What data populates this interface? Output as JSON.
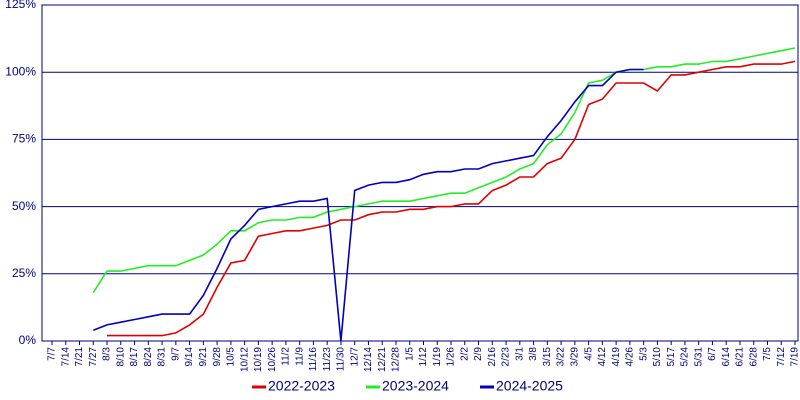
{
  "chart_data": {
    "type": "line",
    "categories": [
      "7/7",
      "7/14",
      "7/21",
      "7/27",
      "8/3",
      "8/10",
      "8/17",
      "8/24",
      "8/31",
      "9/7",
      "9/14",
      "9/21",
      "9/28",
      "10/5",
      "10/12",
      "10/19",
      "10/26",
      "11/2",
      "11/9",
      "11/16",
      "11/23",
      "11/30",
      "12/7",
      "12/14",
      "12/21",
      "12/28",
      "1/5",
      "1/12",
      "1/19",
      "1/26",
      "2/2",
      "2/9",
      "2/16",
      "2/23",
      "3/1",
      "3/8",
      "3/15",
      "3/22",
      "3/29",
      "4/5",
      "4/12",
      "4/19",
      "4/26",
      "5/3",
      "5/10",
      "5/17",
      "5/24",
      "5/31",
      "6/7",
      "6/14",
      "6/21",
      "6/28",
      "7/5",
      "7/12",
      "7/19"
    ],
    "series": [
      {
        "name": "2022-2023",
        "color": "#e00000",
        "values": [
          null,
          null,
          null,
          null,
          2,
          2,
          2,
          2,
          2,
          3,
          6,
          10,
          20,
          29,
          30,
          39,
          40,
          41,
          41,
          42,
          43,
          45,
          45,
          47,
          48,
          48,
          49,
          49,
          50,
          50,
          51,
          51,
          56,
          58,
          61,
          61,
          66,
          68,
          75,
          88,
          90,
          96,
          96,
          96,
          93,
          99,
          99,
          100,
          101,
          102,
          102,
          103,
          103,
          103,
          104
        ]
      },
      {
        "name": "2023-2024",
        "color": "#22ee22",
        "values": [
          null,
          null,
          null,
          18,
          26,
          26,
          27,
          28,
          28,
          28,
          30,
          32,
          36,
          41,
          41,
          44,
          45,
          45,
          46,
          46,
          48,
          49,
          50,
          51,
          52,
          52,
          52,
          53,
          54,
          55,
          55,
          57,
          59,
          61,
          64,
          66,
          73,
          77,
          85,
          96,
          97,
          100,
          101,
          101,
          102,
          102,
          103,
          103,
          104,
          104,
          105,
          106,
          107,
          108,
          109
        ]
      },
      {
        "name": "2024-2025",
        "color": "#0000c0",
        "values": [
          null,
          null,
          null,
          4,
          6,
          7,
          8,
          9,
          10,
          10,
          10,
          17,
          27,
          38,
          43,
          49,
          50,
          51,
          52,
          52,
          53,
          0,
          56,
          58,
          59,
          59,
          60,
          62,
          63,
          63,
          64,
          64,
          66,
          67,
          68,
          69,
          76,
          82,
          89,
          95,
          95,
          100,
          101,
          101,
          null,
          null,
          null,
          null,
          null,
          null,
          null,
          null,
          null,
          null,
          null
        ]
      }
    ],
    "ylim": [
      0,
      125
    ],
    "yticks": [
      {
        "value": 0,
        "label": "0%"
      },
      {
        "value": 25,
        "label": "25%"
      },
      {
        "value": 50,
        "label": "50%"
      },
      {
        "value": 75,
        "label": "75%"
      },
      {
        "value": 100,
        "label": "100%"
      },
      {
        "value": 125,
        "label": "125%"
      }
    ],
    "grid": true
  }
}
